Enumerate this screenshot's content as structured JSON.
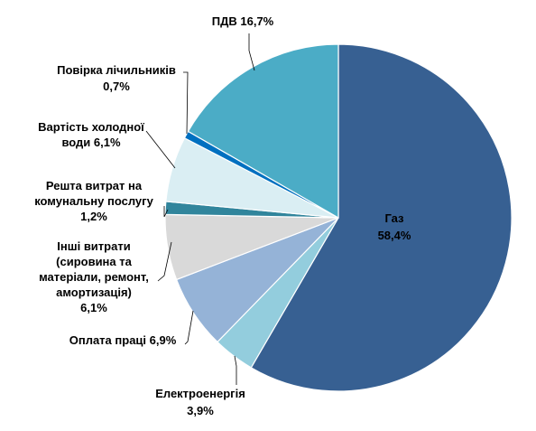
{
  "chart_data": {
    "type": "pie",
    "title": "",
    "legend": "none",
    "slices": [
      {
        "name": "Газ",
        "value": 58.4,
        "label_lines": [
          "Газ",
          "58,4%"
        ],
        "color": "#376092"
      },
      {
        "name": "Електроенергія",
        "value": 3.9,
        "label_lines": [
          "Електроенергія",
          "3,9%"
        ],
        "color": "#93CDDD"
      },
      {
        "name": "Оплата праці",
        "value": 6.9,
        "label_lines": [
          "Оплата праці 6,9%"
        ],
        "color": "#95B3D7"
      },
      {
        "name": "Інші витрати (сировина та матеріали, ремонт, амортизація)",
        "value": 6.1,
        "label_lines": [
          "Інші витрати",
          "(сировина та",
          "матеріали, ремонт,",
          "амортизація)",
          "6,1%"
        ],
        "color": "#D9D9D9"
      },
      {
        "name": "Решта витрат на комунальну послугу",
        "value": 1.2,
        "label_lines": [
          "Решта витрат на",
          "комунальну послугу",
          "1,2%"
        ],
        "color": "#31859C"
      },
      {
        "name": "Вартість холодної води",
        "value": 6.1,
        "label_lines": [
          "Вартість холодної",
          "води 6,1%"
        ],
        "color": "#DAEEF3"
      },
      {
        "name": "Повірка лічильників",
        "value": 0.7,
        "label_lines": [
          "Повірка лічильників",
          "0,7%"
        ],
        "color": "#0070C0"
      },
      {
        "name": "ПДВ",
        "value": 16.7,
        "label_lines": [
          "ПДВ 16,7%"
        ],
        "color": "#4BACC6"
      }
    ]
  }
}
